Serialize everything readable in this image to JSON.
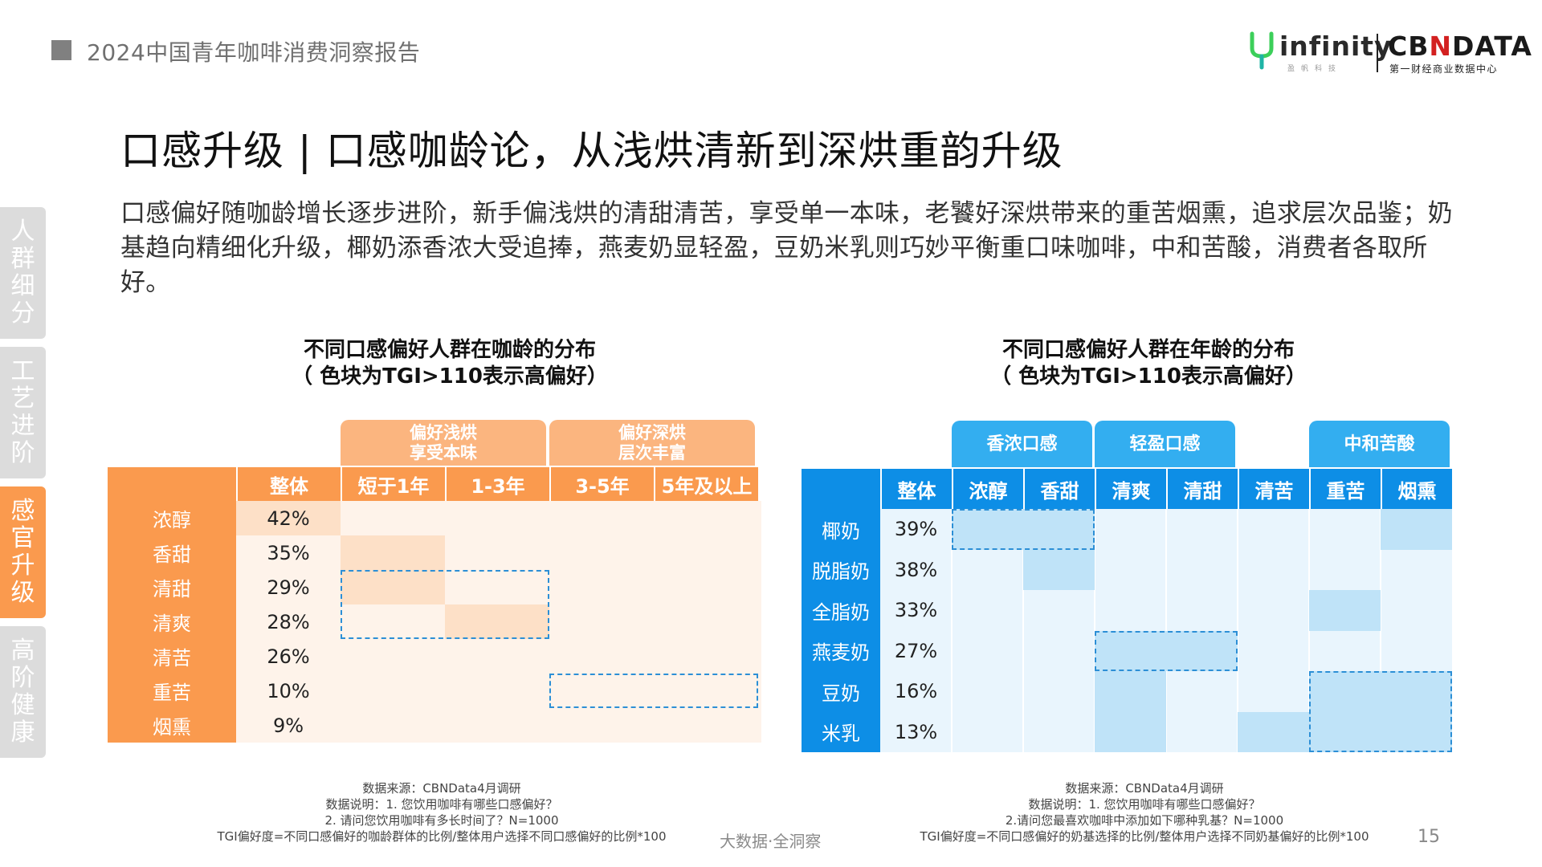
{
  "header": {
    "report_title": "2024中国青年咖啡消费洞察报告",
    "logo_infinity": {
      "text": "infinity",
      "sub": "盈帆科技"
    },
    "logo_cbndata": {
      "pre": "CB",
      "mid": "N",
      "post": "DATA",
      "sub": "第一财经商业数据中心"
    }
  },
  "side_tabs": [
    {
      "label": "人群细分",
      "active": false
    },
    {
      "label": "工艺进阶",
      "active": false
    },
    {
      "label": "感官升级",
      "active": true
    },
    {
      "label": "高阶健康",
      "active": false
    }
  ],
  "headline": "口感升级 | 口感咖龄论，从浅烘清新到深烘重韵升级",
  "paragraph": "口感偏好随咖龄增长逐步进阶，新手偏浅烘的清甜清苦，享受单一本味，老饕好深烘带来的重苦烟熏，追求层次品鉴；奶基趋向精细化升级，椰奶添香浓大受追捧，燕麦奶显轻盈，豆奶米乳则巧妙平衡重口味咖啡，中和苦酸，消费者各取所好。",
  "left_table": {
    "title_line1": "不同口感偏好人群在咖龄的分布",
    "title_line2": "（ 色块为TGI>110表示高偏好）",
    "groups": [
      {
        "line1": "偏好浅烘",
        "line2": "享受本味"
      },
      {
        "line1": "偏好深烘",
        "line2": "层次丰富"
      }
    ],
    "columns": [
      "整体",
      "短于1年",
      "1-3年",
      "3-5年",
      "5年及以上"
    ],
    "rows": [
      {
        "label": "浓醇",
        "value": "42%"
      },
      {
        "label": "香甜",
        "value": "35%"
      },
      {
        "label": "清甜",
        "value": "29%"
      },
      {
        "label": "清爽",
        "value": "28%"
      },
      {
        "label": "清苦",
        "value": "26%"
      },
      {
        "label": "重苦",
        "value": "10%"
      },
      {
        "label": "烟熏",
        "value": "9%"
      }
    ],
    "colors": {
      "header": "#fa9a4e",
      "group_head": "#fbb57f",
      "cell": "#fef3ea",
      "highlight": "#fde0c7",
      "dash": "#2c8fd6"
    }
  },
  "right_table": {
    "title_line1": "不同口感偏好人群在年龄的分布",
    "title_line2": "（ 色块为TGI>110表示高偏好）",
    "groups": [
      "香浓口感",
      "轻盈口感",
      "中和苦酸"
    ],
    "columns": [
      "整体",
      "浓醇",
      "香甜",
      "清爽",
      "清甜",
      "清苦",
      "重苦",
      "烟熏"
    ],
    "rows": [
      {
        "label": "椰奶",
        "value": "39%"
      },
      {
        "label": "脱脂奶",
        "value": "38%"
      },
      {
        "label": "全脂奶",
        "value": "33%"
      },
      {
        "label": "燕麦奶",
        "value": "27%"
      },
      {
        "label": "豆奶",
        "value": "16%"
      },
      {
        "label": "米乳",
        "value": "13%"
      }
    ],
    "colors": {
      "header": "#0d8ee6",
      "group_head": "#33aef0",
      "cell": "#e9f5fd",
      "highlight": "#bfe3f8",
      "dash": "#2c8fd6"
    }
  },
  "footnote_left": {
    "line1": "数据来源：CBNData4月调研",
    "line2": "数据说明：1. 您饮用咖啡有哪些口感偏好？",
    "line3": "2. 请问您饮用咖啡有多长时间了？N=1000",
    "line4": "TGI偏好度=不同口感偏好的咖龄群体的比例/整体用户选择不同口感偏好的比例*100"
  },
  "footnote_right": {
    "line1": "数据来源：CBNData4月调研",
    "line2": "数据说明：1. 您饮用咖啡有哪些口感偏好？",
    "line3": "2.请问您最喜欢咖啡中添加如下哪种乳基？N=1000",
    "line4": "TGI偏好度=不同口感偏好的奶基选择的比例/整体用户选择不同奶基偏好的比例*100"
  },
  "footer_center": "大数据·全洞察",
  "page_number": "15"
}
